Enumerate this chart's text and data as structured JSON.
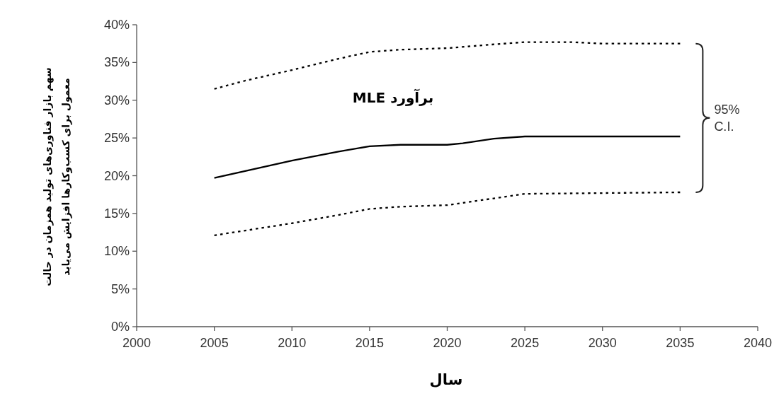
{
  "chart_data": {
    "type": "line",
    "xlabel": "سال",
    "ylabel": "سهم بازار فناوری‌های تولید همزمان در حالت معمول برای کسب‌وکارها افزایش می‌یابد",
    "annotations": [
      "برآورد MLE",
      "95% C.I."
    ],
    "series": [
      {
        "color": "#000000",
        "line_style": "dotted",
        "x": [
          2005,
          2007,
          2010,
          2013,
          2015,
          2017,
          2020,
          2023,
          2025,
          2028,
          2030,
          2035
        ],
        "values": [
          31.5,
          32.6,
          34.0,
          35.5,
          36.4,
          36.7,
          36.9,
          37.4,
          37.7,
          37.7,
          37.5,
          37.5
        ]
      },
      {
        "color": "#000000",
        "line_style": "solid",
        "x": [
          2005,
          2010,
          2013,
          2015,
          2017,
          2020,
          2021,
          2023,
          2025,
          2035
        ],
        "values": [
          19.7,
          22.0,
          23.2,
          23.9,
          24.1,
          24.1,
          24.3,
          24.9,
          25.2,
          25.2
        ]
      },
      {
        "color": "#000000",
        "line_style": "dotted",
        "x": [
          2005,
          2010,
          2013,
          2015,
          2017,
          2020,
          2022,
          2025,
          2035
        ],
        "values": [
          12.1,
          13.7,
          14.8,
          15.6,
          15.9,
          16.1,
          16.7,
          17.6,
          17.8
        ]
      }
    ],
    "xlim": [
      2000,
      2040
    ],
    "ylim": [
      0,
      40
    ],
    "xticks": [
      2000,
      2005,
      2010,
      2015,
      2020,
      2025,
      2030,
      2035,
      2040
    ],
    "yticks": [
      {
        "value": 0,
        "label": "0%"
      },
      {
        "value": 5,
        "label": "5%"
      },
      {
        "value": 10,
        "label": "10%"
      },
      {
        "value": 15,
        "label": "15%"
      },
      {
        "value": 20,
        "label": "20%"
      },
      {
        "value": 25,
        "label": "25%"
      },
      {
        "value": 30,
        "label": "30%"
      },
      {
        "value": 35,
        "label": "35%"
      },
      {
        "value": 40,
        "label": "40%"
      }
    ]
  }
}
